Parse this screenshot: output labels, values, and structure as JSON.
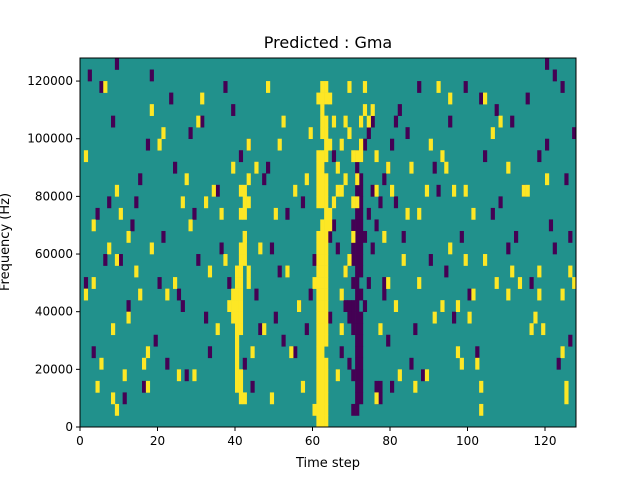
{
  "chart_data": {
    "type": "heatmap",
    "title": "Predicted : Gma",
    "xlabel": "Time step",
    "ylabel": "Frequency (Hz)",
    "xlim": [
      0,
      128
    ],
    "ylim": [
      0,
      128000
    ],
    "x_ticks": [
      0,
      20,
      40,
      60,
      80,
      100,
      120
    ],
    "y_ticks": [
      0,
      20000,
      40000,
      60000,
      80000,
      100000,
      120000
    ],
    "x_tick_labels": [
      "0",
      "20",
      "40",
      "60",
      "80",
      "100",
      "120"
    ],
    "y_tick_labels": [
      "0",
      "20000",
      "40000",
      "60000",
      "80000",
      "100000",
      "120000"
    ],
    "grid": false,
    "legend": "none",
    "colormap": {
      "low": "#440154",
      "mid": "#21918c",
      "high": "#fde725"
    },
    "rows": 32,
    "cols": 128,
    "background_value": 0,
    "cells_high": [
      [
        61,
        0
      ],
      [
        62,
        0
      ],
      [
        63,
        0
      ],
      [
        60,
        1
      ],
      [
        61,
        1
      ],
      [
        62,
        1
      ],
      [
        63,
        1
      ],
      [
        61,
        2
      ],
      [
        62,
        2
      ],
      [
        63,
        2
      ],
      [
        61,
        3
      ],
      [
        62,
        3
      ],
      [
        63,
        3
      ],
      [
        61,
        4
      ],
      [
        62,
        4
      ],
      [
        63,
        4
      ],
      [
        61,
        5
      ],
      [
        62,
        5
      ],
      [
        63,
        5
      ],
      [
        61,
        6
      ],
      [
        62,
        6
      ],
      [
        61,
        7
      ],
      [
        62,
        7
      ],
      [
        63,
        7
      ],
      [
        61,
        8
      ],
      [
        62,
        8
      ],
      [
        63,
        8
      ],
      [
        61,
        9
      ],
      [
        62,
        9
      ],
      [
        63,
        9
      ],
      [
        61,
        10
      ],
      [
        62,
        10
      ],
      [
        63,
        10
      ],
      [
        61,
        11
      ],
      [
        62,
        11
      ],
      [
        63,
        11
      ],
      [
        60,
        12
      ],
      [
        61,
        12
      ],
      [
        62,
        12
      ],
      [
        63,
        12
      ],
      [
        61,
        13
      ],
      [
        62,
        13
      ],
      [
        63,
        13
      ],
      [
        61,
        14
      ],
      [
        62,
        14
      ],
      [
        63,
        14
      ],
      [
        61,
        15
      ],
      [
        62,
        15
      ],
      [
        63,
        15
      ],
      [
        61,
        16
      ],
      [
        62,
        16
      ],
      [
        63,
        16
      ],
      [
        62,
        17
      ],
      [
        63,
        17
      ],
      [
        64,
        17
      ],
      [
        63,
        18
      ],
      [
        64,
        18
      ],
      [
        61,
        19
      ],
      [
        62,
        19
      ],
      [
        63,
        19
      ],
      [
        61,
        20
      ],
      [
        62,
        20
      ],
      [
        63,
        20
      ],
      [
        61,
        21
      ],
      [
        62,
        21
      ],
      [
        63,
        21
      ],
      [
        61,
        22
      ],
      [
        62,
        22
      ],
      [
        61,
        23
      ],
      [
        62,
        23
      ],
      [
        63,
        23
      ],
      [
        63,
        24
      ],
      [
        64,
        24
      ],
      [
        62,
        25
      ],
      [
        63,
        25
      ],
      [
        62,
        26
      ],
      [
        63,
        26
      ],
      [
        62,
        27
      ],
      [
        61,
        28
      ],
      [
        62,
        28
      ],
      [
        63,
        28
      ],
      [
        62,
        29
      ],
      [
        63,
        29
      ],
      [
        40,
        3
      ],
      [
        41,
        3
      ],
      [
        40,
        4
      ],
      [
        41,
        4
      ],
      [
        40,
        5
      ],
      [
        40,
        6
      ],
      [
        40,
        7
      ],
      [
        40,
        8
      ],
      [
        41,
        8
      ],
      [
        39,
        9
      ],
      [
        40,
        9
      ],
      [
        41,
        9
      ],
      [
        39,
        10
      ],
      [
        40,
        10
      ],
      [
        41,
        10
      ],
      [
        39,
        11
      ],
      [
        40,
        11
      ],
      [
        41,
        11
      ],
      [
        40,
        12
      ],
      [
        41,
        12
      ],
      [
        40,
        13
      ],
      [
        41,
        13
      ],
      [
        41,
        14
      ],
      [
        42,
        14
      ],
      [
        41,
        15
      ],
      [
        42,
        15
      ],
      [
        42,
        16
      ],
      [
        41,
        18
      ],
      [
        42,
        18
      ],
      [
        43,
        12
      ],
      [
        43,
        13
      ],
      [
        42,
        19
      ],
      [
        43,
        19
      ],
      [
        41,
        20
      ],
      [
        42,
        20
      ],
      [
        43,
        24
      ],
      [
        41,
        2
      ],
      [
        42,
        2
      ],
      [
        66,
        20
      ],
      [
        67,
        20
      ],
      [
        68,
        21
      ],
      [
        67,
        24
      ],
      [
        69,
        25
      ],
      [
        70,
        19
      ],
      [
        70,
        23
      ],
      [
        71,
        23
      ],
      [
        72,
        23
      ],
      [
        72,
        24
      ],
      [
        71,
        21
      ],
      [
        72,
        26
      ],
      [
        73,
        27
      ],
      [
        74,
        26
      ],
      [
        76,
        23
      ],
      [
        76,
        20
      ],
      [
        79,
        22
      ],
      [
        79,
        12
      ],
      [
        84,
        18
      ],
      [
        87,
        18
      ],
      [
        89,
        4
      ],
      [
        91,
        9
      ],
      [
        93,
        10
      ],
      [
        95,
        15
      ],
      [
        97,
        10
      ],
      [
        98,
        5
      ],
      [
        99,
        14
      ],
      [
        100,
        9
      ],
      [
        101,
        18
      ],
      [
        102,
        5
      ],
      [
        103,
        3
      ],
      [
        104,
        14
      ],
      [
        107,
        12
      ],
      [
        110,
        11
      ],
      [
        111,
        13
      ],
      [
        113,
        12
      ],
      [
        114,
        20
      ],
      [
        115,
        20
      ],
      [
        116,
        8
      ],
      [
        117,
        9
      ],
      [
        118,
        11
      ],
      [
        119,
        8
      ],
      [
        120,
        21
      ],
      [
        124,
        6
      ],
      [
        125,
        3
      ],
      [
        126,
        13
      ],
      [
        127,
        12
      ],
      [
        125,
        2
      ],
      [
        124,
        11
      ],
      [
        118,
        13
      ],
      [
        110,
        22
      ],
      [
        108,
        26
      ],
      [
        106,
        25
      ],
      [
        104,
        28
      ],
      [
        103,
        1
      ],
      [
        101,
        11
      ],
      [
        99,
        20
      ],
      [
        97,
        6
      ],
      [
        96,
        20
      ],
      [
        95,
        28
      ],
      [
        94,
        22
      ],
      [
        93,
        23
      ],
      [
        92,
        29
      ],
      [
        90,
        24
      ],
      [
        89,
        20
      ],
      [
        87,
        12
      ],
      [
        86,
        3
      ],
      [
        85,
        22
      ],
      [
        83,
        14
      ],
      [
        82,
        4
      ],
      [
        81,
        10
      ],
      [
        80,
        20
      ],
      [
        78,
        16
      ],
      [
        77,
        8
      ],
      [
        76,
        2
      ],
      [
        75,
        27
      ],
      [
        73,
        29
      ],
      [
        71,
        19
      ],
      [
        70,
        16
      ],
      [
        69,
        14
      ],
      [
        68,
        13
      ],
      [
        67,
        11
      ],
      [
        66,
        22
      ],
      [
        65,
        26
      ],
      [
        1,
        11
      ],
      [
        1,
        23
      ],
      [
        3,
        12
      ],
      [
        3,
        17
      ],
      [
        4,
        3
      ],
      [
        5,
        5
      ],
      [
        6,
        29
      ],
      [
        7,
        15
      ],
      [
        8,
        2
      ],
      [
        8,
        8
      ],
      [
        9,
        1
      ],
      [
        9,
        14
      ],
      [
        9,
        20
      ],
      [
        10,
        18
      ],
      [
        11,
        4
      ],
      [
        12,
        9
      ],
      [
        12,
        16
      ],
      [
        14,
        13
      ],
      [
        15,
        11
      ],
      [
        16,
        5
      ],
      [
        17,
        3
      ],
      [
        17,
        6
      ],
      [
        18,
        15
      ],
      [
        18,
        27
      ],
      [
        20,
        24
      ],
      [
        21,
        25
      ],
      [
        22,
        11
      ],
      [
        24,
        12
      ],
      [
        25,
        4
      ],
      [
        26,
        19
      ],
      [
        27,
        21
      ],
      [
        28,
        17
      ],
      [
        29,
        4
      ],
      [
        30,
        26
      ],
      [
        31,
        28
      ],
      [
        32,
        19
      ],
      [
        33,
        13
      ],
      [
        34,
        20
      ],
      [
        35,
        8
      ],
      [
        36,
        18
      ],
      [
        37,
        14
      ],
      [
        38,
        10
      ],
      [
        39,
        22
      ],
      [
        42,
        16
      ],
      [
        43,
        21
      ],
      [
        44,
        6
      ],
      [
        45,
        22
      ],
      [
        46,
        15
      ],
      [
        47,
        8
      ],
      [
        48,
        29
      ],
      [
        49,
        2
      ],
      [
        50,
        18
      ],
      [
        51,
        24
      ],
      [
        52,
        26
      ],
      [
        53,
        13
      ],
      [
        54,
        6
      ],
      [
        55,
        20
      ],
      [
        56,
        10
      ],
      [
        57,
        3
      ],
      [
        58,
        21
      ],
      [
        59,
        25
      ],
      [
        64,
        28
      ],
      [
        65,
        19
      ],
      [
        66,
        4
      ],
      [
        67,
        8
      ],
      [
        68,
        26
      ],
      [
        69,
        29
      ]
    ],
    "cells_low": [
      [
        70,
        14
      ],
      [
        71,
        14
      ],
      [
        72,
        14
      ],
      [
        70,
        15
      ],
      [
        71,
        15
      ],
      [
        72,
        15
      ],
      [
        71,
        16
      ],
      [
        72,
        16
      ],
      [
        73,
        16
      ],
      [
        70,
        17
      ],
      [
        71,
        17
      ],
      [
        72,
        17
      ],
      [
        71,
        18
      ],
      [
        72,
        18
      ],
      [
        71,
        19
      ],
      [
        72,
        19
      ],
      [
        71,
        20
      ],
      [
        72,
        20
      ],
      [
        71,
        21
      ],
      [
        72,
        21
      ],
      [
        71,
        22
      ],
      [
        71,
        23
      ],
      [
        72,
        23
      ],
      [
        70,
        12
      ],
      [
        71,
        12
      ],
      [
        71,
        13
      ],
      [
        72,
        13
      ],
      [
        71,
        11
      ],
      [
        72,
        11
      ],
      [
        70,
        9
      ],
      [
        71,
        9
      ],
      [
        72,
        9
      ],
      [
        70,
        8
      ],
      [
        71,
        8
      ],
      [
        72,
        8
      ],
      [
        71,
        7
      ],
      [
        72,
        7
      ],
      [
        71,
        6
      ],
      [
        72,
        6
      ],
      [
        71,
        5
      ],
      [
        72,
        5
      ],
      [
        70,
        4
      ],
      [
        71,
        4
      ],
      [
        72,
        4
      ],
      [
        71,
        3
      ],
      [
        72,
        3
      ],
      [
        71,
        2
      ],
      [
        72,
        2
      ],
      [
        70,
        1
      ],
      [
        71,
        1
      ],
      [
        69,
        10
      ],
      [
        70,
        10
      ],
      [
        71,
        10
      ],
      [
        68,
        10
      ],
      [
        69,
        9
      ],
      [
        76,
        2
      ],
      [
        77,
        2
      ],
      [
        76,
        3
      ],
      [
        77,
        3
      ],
      [
        78,
        11
      ],
      [
        78,
        12
      ],
      [
        75,
        15
      ],
      [
        76,
        17
      ],
      [
        77,
        19
      ],
      [
        78,
        21
      ],
      [
        79,
        22
      ],
      [
        80,
        24
      ],
      [
        81,
        26
      ],
      [
        82,
        27
      ],
      [
        73,
        24
      ],
      [
        74,
        25
      ],
      [
        75,
        26
      ],
      [
        73,
        10
      ],
      [
        74,
        12
      ],
      [
        75,
        20
      ],
      [
        74,
        18
      ],
      [
        64,
        16
      ],
      [
        65,
        17
      ],
      [
        66,
        15
      ],
      [
        67,
        6
      ],
      [
        68,
        13
      ],
      [
        69,
        5
      ],
      [
        63,
        28
      ],
      [
        65,
        23
      ],
      [
        64,
        9
      ],
      [
        62,
        22
      ],
      [
        60,
        14
      ],
      [
        59,
        11
      ],
      [
        58,
        8
      ],
      [
        57,
        19
      ],
      [
        56,
        10
      ],
      [
        55,
        6
      ],
      [
        53,
        18
      ],
      [
        52,
        7
      ],
      [
        51,
        13
      ],
      [
        50,
        9
      ],
      [
        49,
        15
      ],
      [
        48,
        22
      ],
      [
        47,
        21
      ],
      [
        46,
        8
      ],
      [
        45,
        11
      ],
      [
        44,
        3
      ],
      [
        43,
        24
      ],
      [
        42,
        5
      ],
      [
        41,
        23
      ],
      [
        39,
        27
      ],
      [
        38,
        12
      ],
      [
        37,
        29
      ],
      [
        36,
        15
      ],
      [
        35,
        20
      ],
      [
        33,
        6
      ],
      [
        32,
        9
      ],
      [
        31,
        26
      ],
      [
        30,
        14
      ],
      [
        29,
        18
      ],
      [
        28,
        25
      ],
      [
        27,
        4
      ],
      [
        26,
        10
      ],
      [
        25,
        11
      ],
      [
        24,
        22
      ],
      [
        23,
        28
      ],
      [
        22,
        5
      ],
      [
        21,
        16
      ],
      [
        20,
        12
      ],
      [
        19,
        7
      ],
      [
        18,
        30
      ],
      [
        17,
        24
      ],
      [
        16,
        3
      ],
      [
        15,
        21
      ],
      [
        14,
        19
      ],
      [
        13,
        17
      ],
      [
        12,
        10
      ],
      [
        11,
        2
      ],
      [
        10,
        14
      ],
      [
        9,
        31
      ],
      [
        8,
        26
      ],
      [
        7,
        19
      ],
      [
        6,
        14
      ],
      [
        5,
        29
      ],
      [
        4,
        18
      ],
      [
        3,
        6
      ],
      [
        2,
        30
      ],
      [
        1,
        12
      ],
      [
        88,
        4
      ],
      [
        90,
        14
      ],
      [
        92,
        20
      ],
      [
        94,
        13
      ],
      [
        96,
        9
      ],
      [
        98,
        16
      ],
      [
        100,
        11
      ],
      [
        102,
        6
      ],
      [
        104,
        23
      ],
      [
        106,
        18
      ],
      [
        108,
        19
      ],
      [
        110,
        15
      ],
      [
        112,
        16
      ],
      [
        114,
        20
      ],
      [
        116,
        12
      ],
      [
        118,
        23
      ],
      [
        120,
        24
      ],
      [
        121,
        17
      ],
      [
        122,
        15
      ],
      [
        123,
        5
      ],
      [
        124,
        29
      ],
      [
        125,
        21
      ],
      [
        126,
        16
      ],
      [
        127,
        25
      ],
      [
        126,
        7
      ],
      [
        122,
        30
      ],
      [
        120,
        31
      ],
      [
        115,
        28
      ],
      [
        111,
        26
      ],
      [
        107,
        27
      ],
      [
        103,
        28
      ],
      [
        99,
        29
      ],
      [
        95,
        26
      ],
      [
        91,
        22
      ],
      [
        87,
        29
      ],
      [
        86,
        8
      ],
      [
        85,
        5
      ],
      [
        84,
        25
      ],
      [
        83,
        16
      ],
      [
        81,
        19
      ],
      [
        80,
        3
      ],
      [
        79,
        7
      ]
    ]
  }
}
